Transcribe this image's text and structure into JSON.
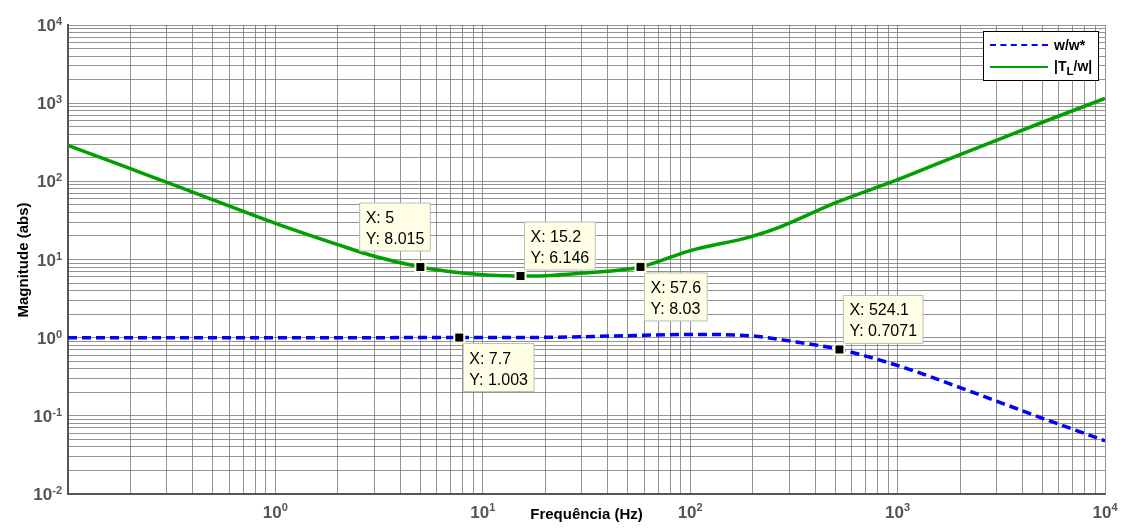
{
  "chart_data": {
    "type": "line",
    "xlabel": "Frequência  (Hz)",
    "ylabel": "Magnitude (abs)",
    "log": "xy",
    "grid": true,
    "legend": "top right",
    "xlim": [
      0.1,
      10000
    ],
    "ylim": [
      0.01,
      10000
    ],
    "xticks": [
      {
        "value": 1,
        "label": "10$^{0}$"
      },
      {
        "value": 10,
        "label": "10$^{1}$"
      },
      {
        "value": 100,
        "label": "10$^{2}$"
      },
      {
        "value": 1000,
        "label": "10$^{3}$"
      },
      {
        "value": 10000,
        "label": "10$^{4}$"
      }
    ],
    "yticks": [
      {
        "value": 0.01,
        "label": "10$^{-2}$"
      },
      {
        "value": 0.1,
        "label": "10$^{-1}$"
      },
      {
        "value": 1,
        "label": "10$^{0}$"
      },
      {
        "value": 10,
        "label": "10$^{1}$"
      },
      {
        "value": 100,
        "label": "10$^{2}$"
      },
      {
        "value": 1000,
        "label": "10$^{3}$"
      },
      {
        "value": 10000,
        "label": "10$^{4}$"
      }
    ],
    "series": [
      {
        "name": "w/w*",
        "color": "#0000ff",
        "line_style": "dashed",
        "x": [
          0.1,
          1,
          7.7,
          20,
          50,
          100,
          200,
          300,
          524.1,
          1000,
          2000,
          5000,
          10000
        ],
        "values": [
          1,
          1,
          1.003,
          1.01,
          1.06,
          1.1,
          1.05,
          0.91,
          0.7071,
          0.44,
          0.23,
          0.093,
          0.048
        ]
      },
      {
        "name": "|T$_{L}$/w|",
        "color": "#00a000",
        "line_style": "solid",
        "x": [
          0.1,
          0.2,
          0.3,
          0.5,
          1,
          2,
          3,
          5,
          8,
          10,
          15.2,
          20,
          30,
          57.6,
          100,
          195,
          270,
          500,
          1000,
          2000,
          5000,
          10000
        ],
        "values": [
          288,
          145,
          97,
          58,
          29,
          15.5,
          11,
          8.015,
          6.7,
          6.4,
          6.146,
          6.2,
          6.7,
          8.03,
          13,
          19.5,
          26,
          53,
          105,
          220,
          570,
          1150
        ]
      }
    ],
    "annotations": [
      {
        "text": "X: 5\nY: 8.015",
        "x": 5,
        "y": 8.015
      },
      {
        "text": "X: 15.2\nY: 6.146",
        "x": 15.2,
        "y": 6.146
      },
      {
        "text": "X: 57.6\nY: 8.03",
        "x": 57.6,
        "y": 8.03
      },
      {
        "text": "X: 7.7\nY: 1.003",
        "x": 7.7,
        "y": 1.003
      },
      {
        "text": "X: 524.1\nY: 0.7071",
        "x": 524.1,
        "y": 0.7071
      }
    ]
  }
}
